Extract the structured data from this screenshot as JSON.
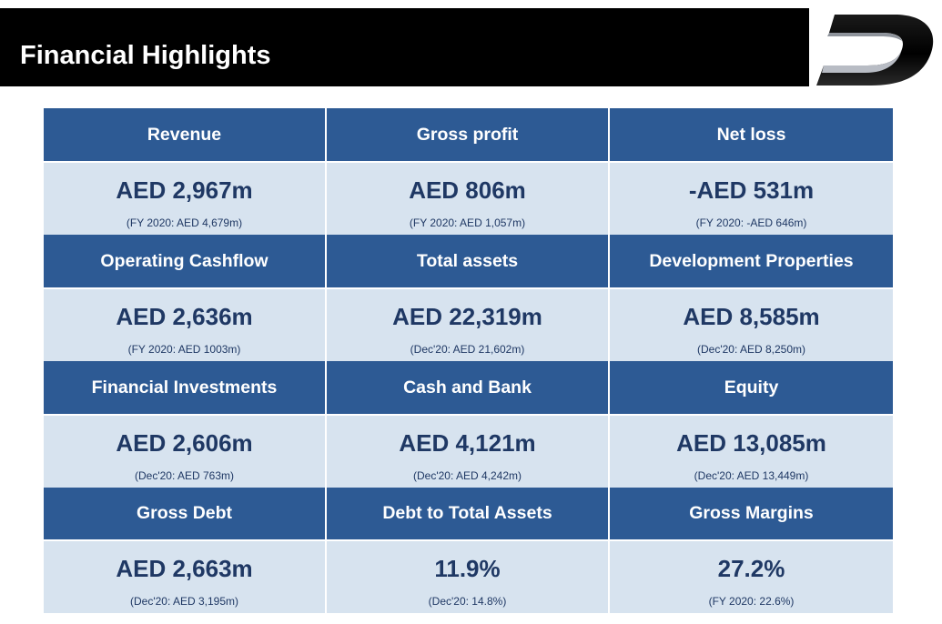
{
  "header": {
    "title": "Financial Highlights"
  },
  "logo": {
    "icon": "company-d-logo"
  },
  "colors": {
    "header_bg": "#000000",
    "cell_header_bg": "#2d5a94",
    "cell_value_bg": "#d7e3ef",
    "value_text": "#1f3864"
  },
  "metrics": [
    {
      "label": "Revenue",
      "value": "AED 2,967m",
      "compare": "(FY 2020: AED 4,679m)"
    },
    {
      "label": "Gross profit",
      "value": "AED 806m",
      "compare": "(FY 2020: AED 1,057m)"
    },
    {
      "label": "Net loss",
      "value": "-AED 531m",
      "compare": "(FY 2020: -AED 646m)"
    },
    {
      "label": "Operating Cashflow",
      "value": "AED 2,636m",
      "compare": "(FY 2020: AED 1003m)"
    },
    {
      "label": "Total assets",
      "value": "AED 22,319m",
      "compare": "(Dec'20: AED 21,602m)"
    },
    {
      "label": "Development Properties",
      "value": "AED 8,585m",
      "compare": "(Dec'20: AED 8,250m)"
    },
    {
      "label": "Financial Investments",
      "value": "AED 2,606m",
      "compare": "(Dec'20: AED 763m)"
    },
    {
      "label": "Cash and Bank",
      "value": "AED 4,121m",
      "compare": "(Dec'20: AED 4,242m)"
    },
    {
      "label": "Equity",
      "value": "AED 13,085m",
      "compare": "(Dec'20: AED 13,449m)"
    },
    {
      "label": "Gross Debt",
      "value": "AED 2,663m",
      "compare": "(Dec'20: AED 3,195m)"
    },
    {
      "label": "Debt to Total Assets",
      "value": "11.9%",
      "compare": "(Dec'20: 14.8%)"
    },
    {
      "label": "Gross Margins",
      "value": "27.2%",
      "compare": "(FY 2020: 22.6%)"
    }
  ]
}
